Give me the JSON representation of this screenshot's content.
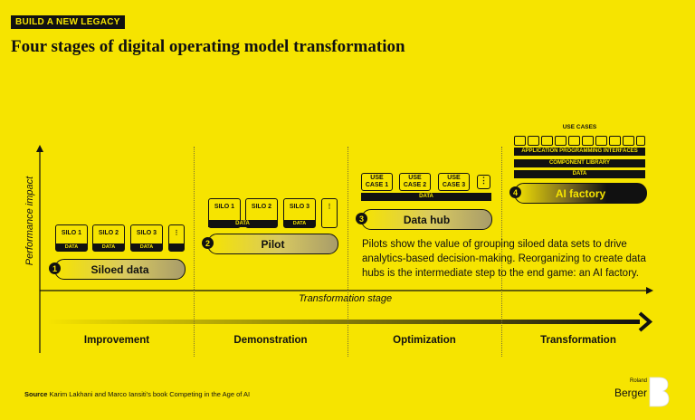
{
  "kicker": "BUILD A NEW LEGACY",
  "title": "Four stages of digital operating model transformation",
  "axes": {
    "y_label": "Performance impact",
    "x_label": "Transformation stage"
  },
  "stages": [
    {
      "number": "1",
      "pill_label": "Siloed data",
      "silos": [
        "SILO 1",
        "SILO 2",
        "SILO 3"
      ],
      "data_label": "DATA",
      "more": "⋮"
    },
    {
      "number": "2",
      "pill_label": "Pilot",
      "silos": [
        "SILO 1",
        "SILO 2",
        "SILO 3"
      ],
      "data_label": "DATA",
      "more": "⋮"
    },
    {
      "number": "3",
      "pill_label": "Data hub",
      "use_cases": [
        "USE CASE 1",
        "USE CASE 2",
        "USE CASE 3"
      ],
      "data_label": "DATA",
      "more": "⋮"
    },
    {
      "number": "4",
      "pill_label": "AI factory",
      "use_cases_label": "USE CASES",
      "layers": [
        "APPLICATION PROGRAMMING INTERFACES",
        "COMPONENT LIBRARY",
        "DATA"
      ]
    }
  ],
  "description": "Pilots show the value of grouping siloed data sets to drive analytics-based decision-making. Reorganizing to create data hubs is the intermediate step to the end game: an AI factory.",
  "phases": [
    "Improvement",
    "Demonstration",
    "Optimization",
    "Transformation"
  ],
  "source": {
    "prefix": "Source",
    "text": " Karim Lakhani and Marco Iansiti's book Competing in the Age of AI"
  },
  "logo": {
    "small": "Roland",
    "big": "Berger"
  },
  "colors": {
    "background": "#f6e400",
    "ink": "#111111"
  }
}
